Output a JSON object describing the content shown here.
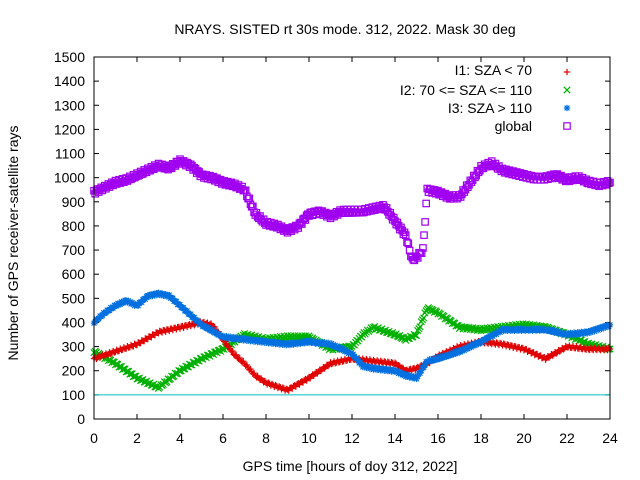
{
  "chart_data": {
    "type": "scatter",
    "title": "NRAYS. SISTED rt 30s mode. 312, 2022. Mask 30 deg",
    "xlabel": "GPS time [hours of doy 312, 2022]",
    "ylabel": "Number of GPS receiver-satellite rays",
    "xlim": [
      0,
      24
    ],
    "ylim": [
      0,
      1500
    ],
    "xticks": [
      "0",
      "2",
      "4",
      "6",
      "8",
      "10",
      "12",
      "14",
      "16",
      "18",
      "20",
      "22",
      "24"
    ],
    "yticks": [
      "0",
      "100",
      "200",
      "300",
      "400",
      "500",
      "600",
      "700",
      "800",
      "900",
      "1000",
      "1100",
      "1200",
      "1300",
      "1400",
      "1500"
    ],
    "grid": false,
    "legend_position": "top-right",
    "reference_line": {
      "y": 100,
      "color": "#00c0c0"
    },
    "series": [
      {
        "name": "I1: SZA < 70",
        "marker": "+",
        "color": "#e00000",
        "x": [
          0,
          1,
          2,
          3,
          4,
          5,
          5.5,
          6,
          6.5,
          7,
          7.5,
          8,
          9,
          10,
          11,
          12,
          13,
          14,
          14.5,
          15,
          15.5,
          16,
          17,
          18,
          19,
          20,
          21,
          22,
          23,
          24
        ],
        "y": [
          250,
          280,
          310,
          360,
          380,
          400,
          390,
          330,
          270,
          230,
          180,
          150,
          120,
          170,
          230,
          250,
          240,
          230,
          200,
          210,
          230,
          260,
          300,
          320,
          310,
          290,
          250,
          300,
          290,
          290
        ]
      },
      {
        "name": "I2: 70 <= SZA <= 110",
        "marker": "x",
        "color": "#00b000",
        "x": [
          0,
          1,
          2,
          3,
          4,
          5,
          6,
          7,
          8,
          9,
          10,
          11,
          12,
          12.5,
          13,
          14,
          14.5,
          15,
          15.5,
          16,
          17,
          18,
          19,
          20,
          21,
          22,
          23,
          24
        ],
        "y": [
          280,
          230,
          170,
          130,
          200,
          250,
          290,
          350,
          330,
          340,
          340,
          290,
          300,
          350,
          380,
          350,
          330,
          350,
          460,
          440,
          380,
          370,
          380,
          390,
          380,
          350,
          310,
          290
        ]
      },
      {
        "name": "I3: SZA > 110",
        "marker": "*",
        "color": "#0070e0",
        "x": [
          0,
          0.5,
          1,
          1.5,
          2,
          2.5,
          3,
          3.5,
          4,
          5,
          6,
          7,
          8,
          9,
          10,
          11,
          12,
          12.5,
          13,
          14,
          14.5,
          15,
          15.5,
          16,
          17,
          18,
          19,
          20,
          21,
          22,
          23,
          24
        ],
        "y": [
          400,
          440,
          470,
          490,
          470,
          510,
          520,
          510,
          470,
          390,
          340,
          330,
          320,
          310,
          320,
          310,
          270,
          220,
          210,
          200,
          180,
          170,
          240,
          250,
          280,
          320,
          370,
          370,
          370,
          350,
          360,
          390
        ]
      },
      {
        "name": "global",
        "marker": "square",
        "color": "#a000f0",
        "x": [
          0,
          0.5,
          1,
          1.5,
          2,
          2.5,
          3,
          3.5,
          4,
          4.5,
          5,
          5.5,
          6,
          6.5,
          7,
          7.5,
          8,
          8.5,
          9,
          9.5,
          10,
          10.5,
          11,
          11.5,
          12,
          12.5,
          13,
          13.5,
          14,
          14.5,
          14.8,
          15,
          15.3,
          15.5,
          16,
          16.5,
          17,
          17.5,
          18,
          18.5,
          19,
          19.5,
          20,
          20.5,
          21,
          21.5,
          22,
          22.5,
          23,
          23.5,
          24
        ],
        "y": [
          940,
          960,
          980,
          990,
          1010,
          1030,
          1050,
          1040,
          1070,
          1050,
          1010,
          1000,
          980,
          970,
          950,
          850,
          810,
          800,
          780,
          800,
          850,
          860,
          840,
          860,
          860,
          860,
          870,
          880,
          820,
          760,
          660,
          670,
          700,
          950,
          940,
          920,
          920,
          980,
          1040,
          1060,
          1030,
          1020,
          1010,
          1000,
          1000,
          1010,
          990,
          1000,
          980,
          970,
          980
        ]
      }
    ]
  }
}
